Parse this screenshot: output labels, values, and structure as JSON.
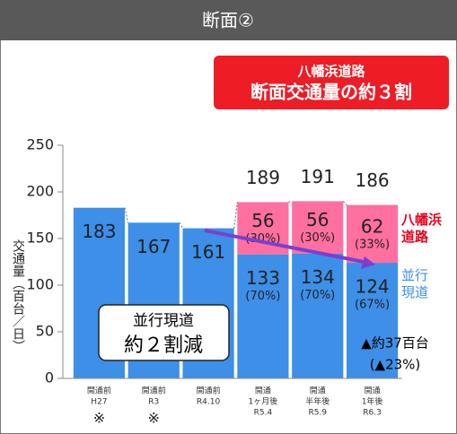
{
  "header": {
    "title": "断面②"
  },
  "chart_data": {
    "type": "stacked_bar",
    "callout": [
      "八幡浜道路",
      "断面交通量の約３割"
    ],
    "y_axis_label": "交通量（百台／日）",
    "categories": [
      [
        "開通前",
        "H27"
      ],
      [
        "開通前",
        "R3"
      ],
      [
        "開通前",
        "R4.10"
      ],
      [
        "開通",
        "1ヶ月後",
        "R5.4"
      ],
      [
        "開通",
        "半年後",
        "R5.9"
      ],
      [
        "開通",
        "1年後",
        "R6.3"
      ]
    ],
    "category_notes": [
      "※",
      "※",
      null,
      null,
      null,
      null
    ],
    "series": [
      {
        "name": "並行現道",
        "color": "#3d8fe8",
        "values": [
          183,
          167,
          161,
          133,
          134,
          124
        ],
        "share_labels": [
          null,
          null,
          null,
          "(70%)",
          "(70%)",
          "(67%)"
        ]
      },
      {
        "name": "八幡浜道路",
        "color": "#ff6f9f",
        "values": [
          null,
          null,
          null,
          56,
          56,
          62
        ],
        "share_labels": [
          null,
          null,
          null,
          "(30%)",
          "(30%)",
          "(33%)"
        ]
      }
    ],
    "totals": [
      null,
      null,
      null,
      189,
      191,
      186
    ],
    "annotations": [
      [
        "並行現道",
        "約２割減"
      ],
      [
        "▲約37百台",
        "(▲23%)"
      ]
    ],
    "ylim": [
      0,
      250
    ],
    "yticks": [
      0,
      50,
      100,
      150,
      200,
      250
    ]
  }
}
